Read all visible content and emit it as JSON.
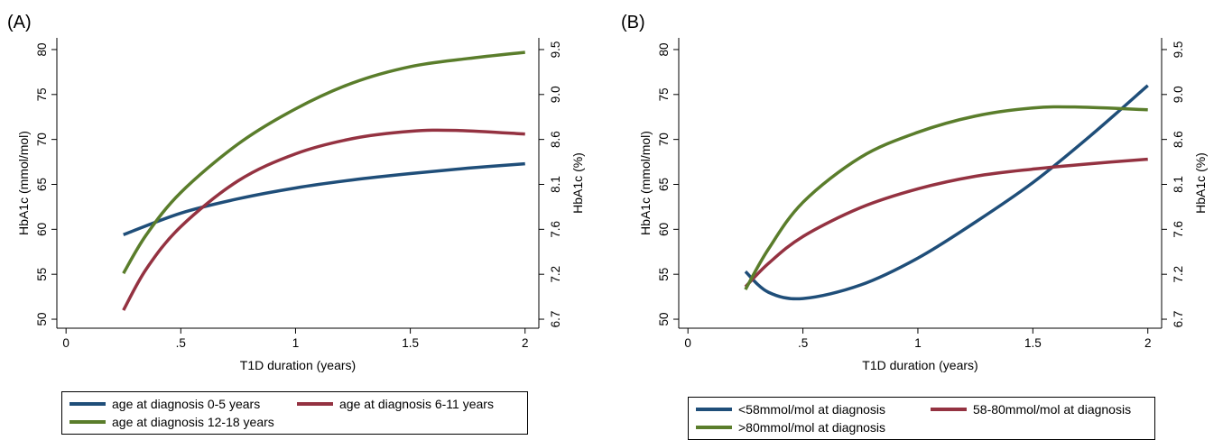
{
  "panels": [
    {
      "label": "(A)",
      "chart_data": {
        "type": "line",
        "xlabel": "T1D duration (years)",
        "ylabel_left": "HbA1c (mmol/mol)",
        "ylabel_right": "HbA1c (%)",
        "xlim": [
          -0.04,
          2.06
        ],
        "ylim": [
          49,
          81.3
        ],
        "x_ticks": [
          {
            "v": 0,
            "label": "0"
          },
          {
            "v": 0.5,
            "label": ".5"
          },
          {
            "v": 1,
            "label": "1"
          },
          {
            "v": 1.5,
            "label": "1.5"
          },
          {
            "v": 2,
            "label": "2"
          }
        ],
        "y_ticks_left": [
          {
            "v": 50,
            "label": "50"
          },
          {
            "v": 55,
            "label": "55"
          },
          {
            "v": 60,
            "label": "60"
          },
          {
            "v": 65,
            "label": "65"
          },
          {
            "v": 70,
            "label": "70"
          },
          {
            "v": 75,
            "label": "75"
          },
          {
            "v": 80,
            "label": "80"
          }
        ],
        "y_ticks_right": [
          {
            "v": 50,
            "label": "6.7"
          },
          {
            "v": 55,
            "label": "7.2"
          },
          {
            "v": 60,
            "label": "7.6"
          },
          {
            "v": 65,
            "label": "8.1"
          },
          {
            "v": 70,
            "label": "8.6"
          },
          {
            "v": 75,
            "label": "9.0"
          },
          {
            "v": 80,
            "label": "9.5"
          }
        ],
        "grid": false,
        "legend_position": "bottom",
        "series": [
          {
            "name": "age at diagnosis 0-5 years",
            "color": "#1f4e79",
            "x": [
              0.25,
              0.5,
              0.75,
              1.0,
              1.25,
              1.5,
              1.75,
              2.0
            ],
            "y": [
              59.4,
              61.8,
              63.4,
              64.6,
              65.5,
              66.2,
              66.8,
              67.3
            ]
          },
          {
            "name": "age at diagnosis 6-11 years",
            "color": "#943241",
            "x": [
              0.25,
              0.35,
              0.5,
              0.75,
              1.0,
              1.25,
              1.5,
              1.7,
              2.0
            ],
            "y": [
              51.0,
              55.6,
              60.3,
              65.4,
              68.4,
              70.1,
              70.9,
              71.0,
              70.6
            ]
          },
          {
            "name": "age at diagnosis 12-18 years",
            "color": "#5a7d2b",
            "x": [
              0.25,
              0.35,
              0.5,
              0.75,
              1.0,
              1.25,
              1.5,
              1.75,
              2.0
            ],
            "y": [
              55.1,
              59.4,
              64.1,
              69.5,
              73.4,
              76.3,
              78.1,
              79.0,
              79.7
            ]
          }
        ]
      }
    },
    {
      "label": "(B)",
      "chart_data": {
        "type": "line",
        "xlabel": "T1D duration (years)",
        "ylabel_left": "HbA1c (mmol/mol)",
        "ylabel_right": "HbA1c (%)",
        "xlim": [
          -0.04,
          2.06
        ],
        "ylim": [
          49,
          81.3
        ],
        "x_ticks": [
          {
            "v": 0,
            "label": "0"
          },
          {
            "v": 0.5,
            "label": ".5"
          },
          {
            "v": 1,
            "label": "1"
          },
          {
            "v": 1.5,
            "label": "1.5"
          },
          {
            "v": 2,
            "label": "2"
          }
        ],
        "y_ticks_left": [
          {
            "v": 50,
            "label": "50"
          },
          {
            "v": 55,
            "label": "55"
          },
          {
            "v": 60,
            "label": "60"
          },
          {
            "v": 65,
            "label": "65"
          },
          {
            "v": 70,
            "label": "70"
          },
          {
            "v": 75,
            "label": "75"
          },
          {
            "v": 80,
            "label": "80"
          }
        ],
        "y_ticks_right": [
          {
            "v": 50,
            "label": "6.7"
          },
          {
            "v": 55,
            "label": "7.2"
          },
          {
            "v": 60,
            "label": "7.6"
          },
          {
            "v": 65,
            "label": "8.1"
          },
          {
            "v": 70,
            "label": "8.6"
          },
          {
            "v": 75,
            "label": "9.0"
          },
          {
            "v": 80,
            "label": "9.5"
          }
        ],
        "grid": false,
        "legend_position": "bottom",
        "series": [
          {
            "name": "<58mmol/mol at diagnosis",
            "color": "#1f4e79",
            "x": [
              0.25,
              0.35,
              0.5,
              0.75,
              1.0,
              1.25,
              1.5,
              1.75,
              2.0
            ],
            "y": [
              55.3,
              53.0,
              52.3,
              53.8,
              56.8,
              60.8,
              65.2,
              70.4,
              76.0
            ]
          },
          {
            "name": "58-80mmol/mol at diagnosis",
            "color": "#943241",
            "x": [
              0.25,
              0.35,
              0.5,
              0.75,
              1.0,
              1.25,
              1.5,
              1.75,
              2.0
            ],
            "y": [
              53.6,
              56.2,
              59.2,
              62.4,
              64.5,
              65.9,
              66.7,
              67.3,
              67.8
            ]
          },
          {
            "name": ">80mmol/mol at diagnosis",
            "color": "#5a7d2b",
            "x": [
              0.25,
              0.35,
              0.5,
              0.75,
              1.0,
              1.25,
              1.5,
              1.7,
              2.0
            ],
            "y": [
              53.3,
              57.8,
              63.0,
              68.0,
              70.8,
              72.6,
              73.5,
              73.6,
              73.3
            ]
          }
        ]
      }
    }
  ]
}
